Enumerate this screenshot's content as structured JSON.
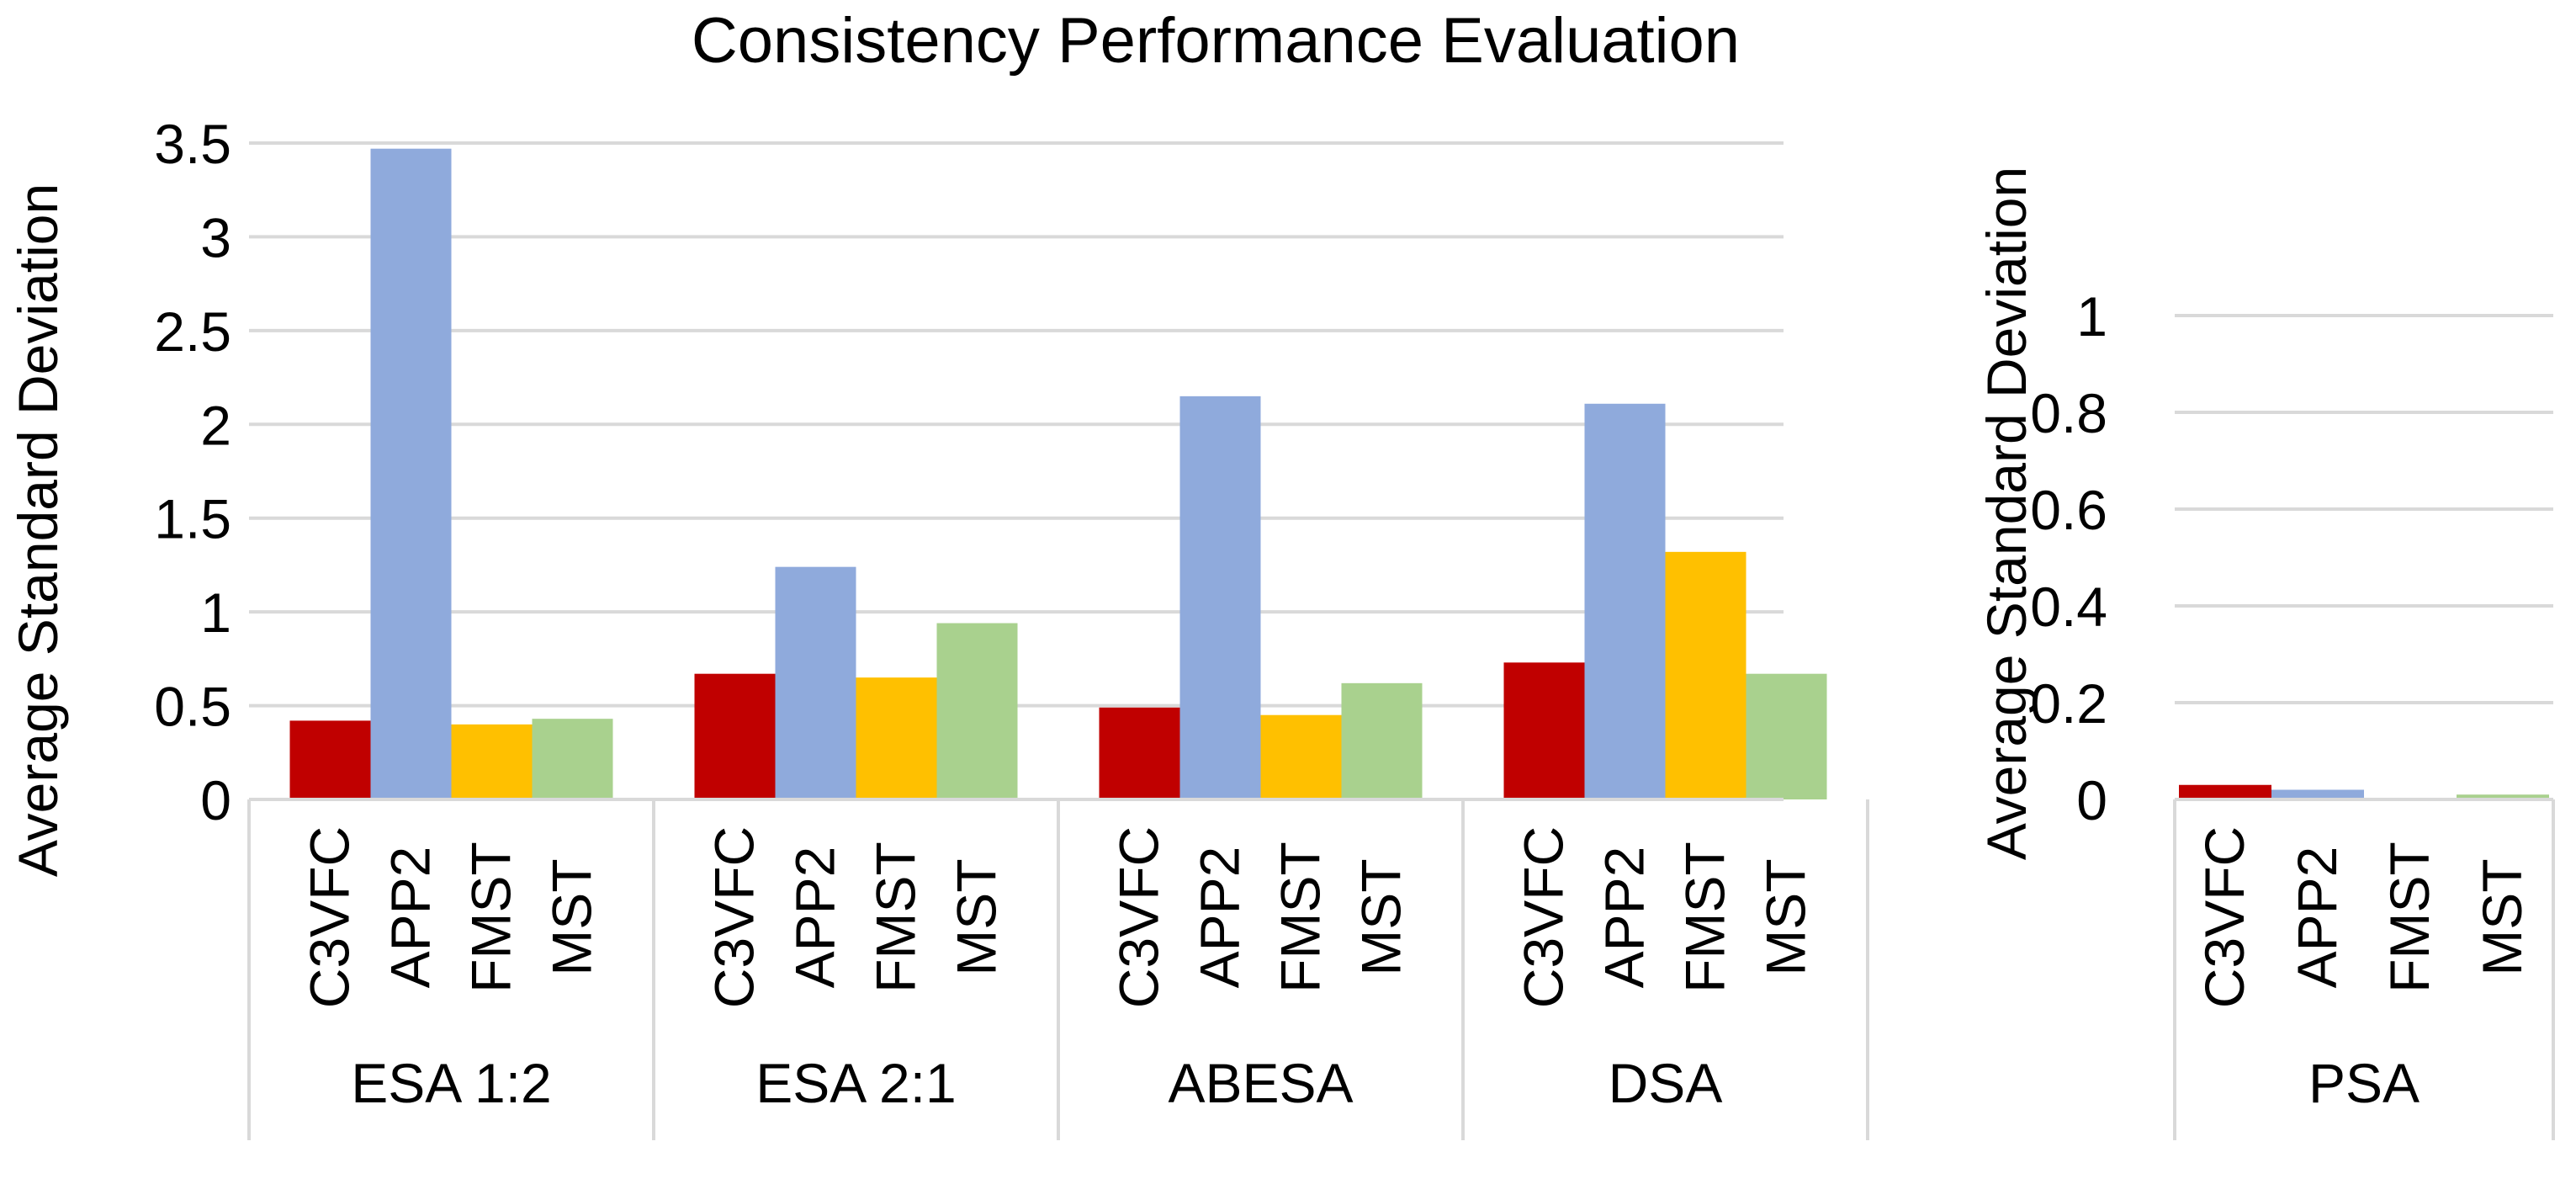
{
  "chart_data": [
    {
      "type": "bar",
      "title": "Consistency Performance Evaluation",
      "ylabel": "Average Standard Deviation",
      "xlabel": "",
      "ylim": [
        0,
        3.5
      ],
      "yticks": [
        "0",
        "0.5",
        "1",
        "1.5",
        "2",
        "2.5",
        "3",
        "3.5"
      ],
      "grid": true,
      "groups": [
        {
          "name": "ESA 1:2",
          "categories": [
            "C3VFC",
            "APP2",
            "FMST",
            "MST"
          ],
          "values": [
            0.42,
            3.47,
            0.4,
            0.43
          ]
        },
        {
          "name": "ESA 2:1",
          "categories": [
            "C3VFC",
            "APP2",
            "FMST",
            "MST"
          ],
          "values": [
            0.67,
            1.24,
            0.65,
            0.94
          ]
        },
        {
          "name": "ABESA",
          "categories": [
            "C3VFC",
            "APP2",
            "FMST",
            "MST"
          ],
          "values": [
            0.49,
            2.15,
            0.45,
            0.62
          ]
        },
        {
          "name": "DSA",
          "categories": [
            "C3VFC",
            "APP2",
            "FMST",
            "MST"
          ],
          "values": [
            0.73,
            2.11,
            1.32,
            0.67
          ]
        }
      ]
    },
    {
      "type": "bar",
      "title": "",
      "ylabel": "Average Standard Deviation",
      "xlabel": "",
      "ylim": [
        0,
        1
      ],
      "yticks": [
        "0",
        "0.2",
        "0.4",
        "0.6",
        "0.8",
        "1"
      ],
      "grid": true,
      "groups": [
        {
          "name": "PSA",
          "categories": [
            "C3VFC",
            "APP2",
            "FMST",
            "MST"
          ],
          "values": [
            0.03,
            0.02,
            0.0,
            0.01
          ]
        }
      ]
    }
  ],
  "series_colors": {
    "C3VFC": "#c00000",
    "APP2": "#8faadc",
    "FMST": "#ffc000",
    "MST": "#a9d18e"
  }
}
